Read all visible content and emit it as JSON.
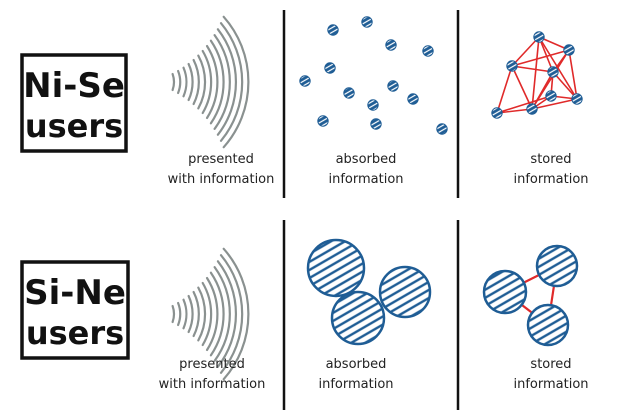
{
  "rows": [
    {
      "user_label": "Ni-Se",
      "user_sub": "users",
      "captions": {
        "presented": [
          "presented",
          "with information"
        ],
        "absorbed": [
          "absorbed",
          "information"
        ],
        "stored": [
          "stored",
          "information"
        ]
      }
    },
    {
      "user_label": "Si-Ne",
      "user_sub": "users",
      "captions": {
        "presented": [
          "presented",
          "with information"
        ],
        "absorbed": [
          "absorbed",
          "information"
        ],
        "stored": [
          "stored",
          "information"
        ]
      }
    }
  ],
  "colors": {
    "ink": "#111111",
    "dot_fill": "#1f5d95",
    "dot_hatch": "#ffffff",
    "network_line": "#e02a2a",
    "wave": "#8a9190",
    "divider": "#111111"
  }
}
